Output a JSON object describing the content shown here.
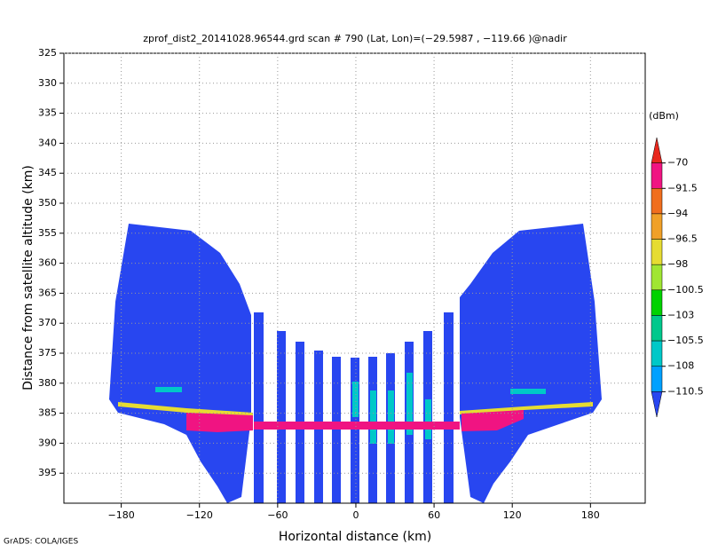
{
  "chart_data": {
    "type": "heatmap",
    "title": "zprof_dist2_20141028.96544.grd   scan # 790   (Lat, Lon)=(−29.5987 , −119.66 )@nadir",
    "x_label": "Horizontal distance (km)",
    "y_label": "Distance from satellite altitude (km)",
    "xlim": [
      -224,
      222
    ],
    "xticks": [
      {
        "value": -180,
        "label": "−180"
      },
      {
        "value": -120,
        "label": "−120"
      },
      {
        "value": -60,
        "label": "−60"
      },
      0,
      60,
      120,
      180
    ],
    "ylim": [
      325,
      400
    ],
    "yticks": [
      325,
      330,
      335,
      340,
      345,
      350,
      355,
      360,
      365,
      370,
      375,
      380,
      385,
      390,
      395
    ],
    "y_inverted": true,
    "grid": true,
    "colorbar": {
      "unit": "(dBm)",
      "levels": [
        {
          "value": -70,
          "label": "−70"
        },
        {
          "value": -91.5,
          "label": "−91.5"
        },
        {
          "value": -94,
          "label": "−94"
        },
        {
          "value": -96.5,
          "label": "−96.5"
        },
        {
          "value": -98,
          "label": "−98"
        },
        {
          "value": -100.5,
          "label": "−100.5"
        },
        {
          "value": -103,
          "label": "−103"
        },
        {
          "value": -105.5,
          "label": "−105.5"
        },
        {
          "value": -108,
          "label": "−108"
        },
        {
          "value": -110.5,
          "label": "−110.5"
        }
      ],
      "colors": [
        "#e8281e",
        "#f01482",
        "#f06e1e",
        "#f0a028",
        "#e6dc32",
        "#a0e632",
        "#00d200",
        "#00c88c",
        "#00c8c8",
        "#00a0ff",
        "#2846f0"
      ]
    },
    "footer": "GrADS: COLA/IGES"
  }
}
